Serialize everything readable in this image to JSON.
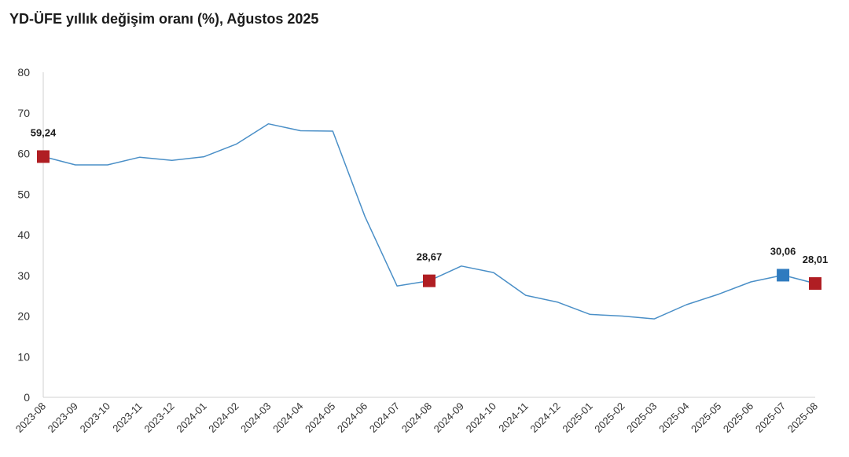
{
  "chart_data": {
    "type": "line",
    "title": "YD-ÜFE yıllık değişim oranı (%), Ağustos 2025",
    "xlabel": "",
    "ylabel": "",
    "ylim": [
      0,
      80
    ],
    "yticks": [
      0,
      10,
      20,
      30,
      40,
      50,
      60,
      70,
      80
    ],
    "grid": false,
    "legend": "none",
    "categories": [
      "2023-08",
      "2023-09",
      "2023-10",
      "2023-11",
      "2023-12",
      "2024-01",
      "2024-02",
      "2024-03",
      "2024-04",
      "2024-05",
      "2024-06",
      "2024-07",
      "2024-08",
      "2024-09",
      "2024-10",
      "2024-11",
      "2024-12",
      "2025-01",
      "2025-02",
      "2025-03",
      "2025-04",
      "2025-05",
      "2025-06",
      "2025-07",
      "2025-08"
    ],
    "series": [
      {
        "values": [
          59.24,
          57.2,
          57.2,
          59.1,
          58.3,
          59.2,
          62.3,
          67.3,
          65.6,
          65.5,
          44.5,
          27.4,
          28.67,
          32.3,
          30.7,
          25.1,
          23.4,
          20.4,
          20.0,
          19.3,
          22.8,
          25.4,
          28.4,
          30.06,
          28.01
        ],
        "color": "#4a8fc7"
      }
    ],
    "highlights": [
      {
        "category": "2023-08",
        "value": 59.24,
        "label": "59,24",
        "color": "#b01e23"
      },
      {
        "category": "2024-08",
        "value": 28.67,
        "label": "28,67",
        "color": "#b01e23"
      },
      {
        "category": "2025-07",
        "value": 30.06,
        "label": "30,06",
        "color": "#2f7bbf"
      },
      {
        "category": "2025-08",
        "value": 28.01,
        "label": "28,01",
        "color": "#b01e23"
      }
    ],
    "axis_color": "#d0d0d0"
  }
}
